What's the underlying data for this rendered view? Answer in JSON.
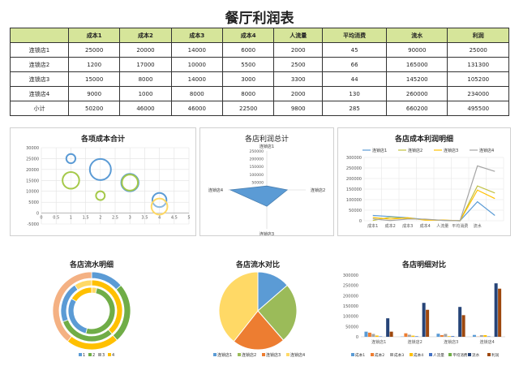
{
  "page_title": "餐厅利润表",
  "table": {
    "headers": [
      "",
      "成本1",
      "成本2",
      "成本3",
      "成本4",
      "人流量",
      "平均消费",
      "流水",
      "利润"
    ],
    "rows": [
      [
        "连锁店1",
        "25000",
        "20000",
        "14000",
        "6000",
        "2000",
        "45",
        "90000",
        "25000"
      ],
      [
        "连锁店2",
        "1200",
        "17000",
        "10000",
        "5500",
        "2500",
        "66",
        "165000",
        "131300"
      ],
      [
        "连锁店3",
        "15000",
        "8000",
        "14000",
        "3000",
        "3300",
        "44",
        "145200",
        "105200"
      ],
      [
        "连锁店4",
        "9000",
        "1000",
        "8000",
        "8000",
        "2000",
        "130",
        "260000",
        "234000"
      ],
      [
        "小计",
        "50200",
        "46000",
        "46000",
        "22500",
        "9800",
        "285",
        "660200",
        "495500"
      ]
    ]
  },
  "colors": {
    "blue": "#5b9bd5",
    "orange": "#ed7d31",
    "gray": "#a5a5a5",
    "yellow": "#ffc000",
    "lightblue": "#4472c4",
    "green": "#70ad47",
    "darkblue": "#264478",
    "darkorange": "#9e480e",
    "header_bg": "#d6e59a"
  },
  "chart_data": [
    {
      "type": "bubble",
      "title": "各项成本合计",
      "xlim": [
        0,
        5
      ],
      "ylim": [
        -5000,
        30000
      ],
      "xticks": [
        "0",
        "0.5",
        "1",
        "1.5",
        "2",
        "2.5",
        "3",
        "3.5",
        "4",
        "4.5",
        "5"
      ],
      "yticks": [
        "30000",
        "25000",
        "20000",
        "15000",
        "10000",
        "5000",
        "0",
        "-5000"
      ],
      "points": [
        {
          "x": 1,
          "y": 25000,
          "size": 1200
        },
        {
          "x": 1,
          "y": 15000,
          "size": 9000
        },
        {
          "x": 2,
          "y": 20000,
          "size": 17000
        },
        {
          "x": 2,
          "y": 8000,
          "size": 1000
        },
        {
          "x": 3,
          "y": 14000,
          "size": 10000
        },
        {
          "x": 3,
          "y": 14000,
          "size": 8000
        },
        {
          "x": 4,
          "y": 6000,
          "size": 5500
        },
        {
          "x": 4,
          "y": 3000,
          "size": 8000
        }
      ],
      "point_colors": [
        "#5b9bd5",
        "#a5c94a",
        "#5b9bd5",
        "#a5c94a",
        "#5b9bd5",
        "#a5c94a",
        "#5b9bd5",
        "#ffd966"
      ]
    },
    {
      "type": "radar",
      "title": "各店利润总计",
      "categories": [
        "连锁店1",
        "连锁店2",
        "连锁店3",
        "连锁店4"
      ],
      "values": [
        25000,
        131300,
        105200,
        234000
      ],
      "ticks": [
        "250000",
        "200000",
        "150000",
        "100000",
        "50000",
        "0"
      ],
      "rmax": 250000
    },
    {
      "type": "line",
      "title": "各店成本利润明细",
      "categories": [
        "成本1",
        "成本2",
        "成本3",
        "成本4",
        "人流量",
        "平均消费",
        "流水",
        "利润"
      ],
      "ylim": [
        0,
        300000
      ],
      "yticks": [
        "300000",
        "250000",
        "200000",
        "150000",
        "100000",
        "50000",
        "0"
      ],
      "series": [
        {
          "name": "连锁店1",
          "values": [
            25000,
            20000,
            14000,
            6000,
            2000,
            45,
            90000,
            25000
          ]
        },
        {
          "name": "连锁店2",
          "values": [
            1200,
            17000,
            10000,
            5500,
            2500,
            66,
            165000,
            131300
          ]
        },
        {
          "name": "连锁店3",
          "values": [
            15000,
            8000,
            14000,
            3000,
            3300,
            44,
            145200,
            105200
          ]
        },
        {
          "name": "连锁店4",
          "values": [
            9000,
            1000,
            8000,
            8000,
            2000,
            130,
            260000,
            234000
          ]
        }
      ],
      "visible_categories": [
        "成本1",
        "成本2",
        "成本3",
        "成本4",
        "人流量",
        "平均消费",
        "流水"
      ]
    },
    {
      "type": "doughnut",
      "title": "各店流水明细",
      "legend": [
        "1",
        "2",
        "3",
        "4"
      ]
    },
    {
      "type": "pie",
      "title": "各店流水对比",
      "categories": [
        "连锁店1",
        "连锁店2",
        "连锁店3",
        "连锁店4"
      ],
      "values": [
        90000,
        165000,
        145200,
        260000
      ]
    },
    {
      "type": "bar",
      "title": "各店明细对比",
      "categories": [
        "连锁店1",
        "连锁店2",
        "连锁店3",
        "连锁店4"
      ],
      "ylim": [
        0,
        300000
      ],
      "yticks": [
        "300000",
        "250000",
        "200000",
        "150000",
        "100000",
        "50000",
        "0"
      ],
      "series": [
        {
          "name": "成本1",
          "values": [
            25000,
            1200,
            15000,
            9000
          ]
        },
        {
          "name": "成本2",
          "values": [
            20000,
            17000,
            8000,
            1000
          ]
        },
        {
          "name": "成本3",
          "values": [
            14000,
            10000,
            14000,
            8000
          ]
        },
        {
          "name": "成本4",
          "values": [
            6000,
            5500,
            3000,
            8000
          ]
        },
        {
          "name": "人流量",
          "values": [
            2000,
            2500,
            3300,
            2000
          ]
        },
        {
          "name": "平均消费",
          "values": [
            45,
            66,
            44,
            130
          ]
        },
        {
          "name": "流水",
          "values": [
            90000,
            165000,
            145200,
            260000
          ]
        },
        {
          "name": "利润",
          "values": [
            25000,
            131300,
            105200,
            234000
          ]
        }
      ]
    }
  ]
}
